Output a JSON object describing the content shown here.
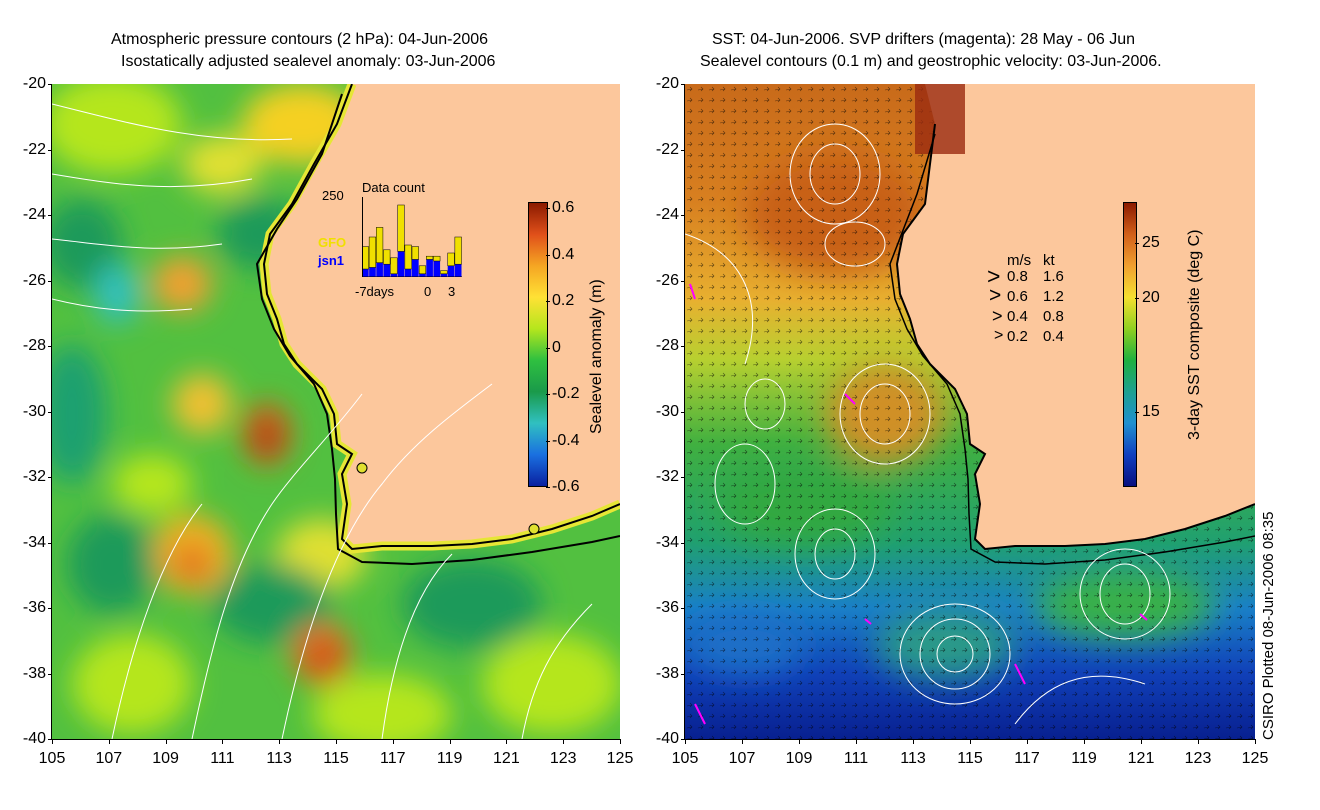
{
  "left_panel": {
    "title_line1": "Atmospheric pressure contours (2 hPa): 04-Jun-2006",
    "title_line2": "Isostatically adjusted sealevel anomaly: 03-Jun-2006",
    "colorbar": {
      "label": "Sealevel anomaly (m)",
      "ticks": [
        "0.6",
        "0.4",
        "0.2",
        "0",
        "-0.2",
        "-0.4",
        "-0.6"
      ],
      "colors": [
        "#8b1a00",
        "#e0501a",
        "#f5a623",
        "#ffe135",
        "#b5e61d",
        "#2fc040",
        "#1a9a4a",
        "#30c0c0",
        "#1a70e0",
        "#0a20a0"
      ]
    },
    "inset": {
      "title": "Data count",
      "ymax": "250",
      "series1": "GFO",
      "series2": "jsn1",
      "xlabel_left": "-7days",
      "xlabel_mid": "0",
      "xlabel_right": "3",
      "gfo_counts": [
        70,
        95,
        110,
        45,
        50,
        145,
        75,
        40,
        25,
        10,
        15,
        10,
        40,
        85
      ],
      "jsn1_counts": [
        25,
        30,
        45,
        40,
        10,
        80,
        25,
        55,
        10,
        55,
        50,
        10,
        35,
        40
      ]
    }
  },
  "right_panel": {
    "title_line1": "SST: 04-Jun-2006. SVP drifters (magenta): 28 May - 06 Jun",
    "title_line2": "Sealevel contours (0.1 m) and geostrophic velocity: 03-Jun-2006.",
    "colorbar": {
      "label": "3-day SST composite (deg C)",
      "ticks": [
        "25",
        "20",
        "15"
      ],
      "colors": [
        "#8b1a00",
        "#d2601a",
        "#f0a030",
        "#f5e030",
        "#90d020",
        "#20b040",
        "#20a090",
        "#2090d0",
        "#1040c0",
        "#081080"
      ]
    },
    "velocity_legend": {
      "header_ms": "m/s",
      "header_kt": "kt",
      "rows": [
        {
          "ms": "0.8",
          "kt": "1.6"
        },
        {
          "ms": "0.6",
          "kt": "1.2"
        },
        {
          "ms": "0.4",
          "kt": "0.8"
        },
        {
          "ms": "0.2",
          "kt": "0.4"
        }
      ]
    }
  },
  "axes": {
    "x_ticks": [
      "105",
      "107",
      "109",
      "111",
      "113",
      "115",
      "117",
      "119",
      "121",
      "123",
      "125"
    ],
    "y_ticks": [
      "-20",
      "-22",
      "-24",
      "-26",
      "-28",
      "-30",
      "-32",
      "-34",
      "-36",
      "-38",
      "-40"
    ]
  },
  "colors": {
    "land": "#fcc79c",
    "coast": "#000000",
    "contour": "#ffffff",
    "drifter": "#ff00ff"
  },
  "credit": "CSIRO Plotted 08-Jun-2006 08:35"
}
